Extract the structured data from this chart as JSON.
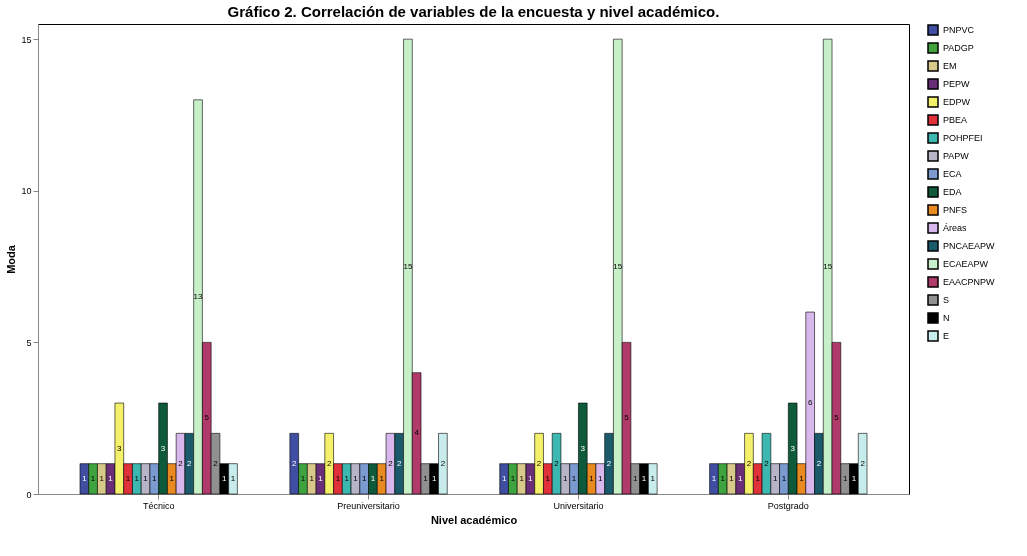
{
  "chart_data": {
    "type": "bar",
    "title": "Gráfico 2. Correlación de variables de la encuesta y nivel académico.",
    "xlabel": "Nivel académico",
    "ylabel": "Moda",
    "categories": [
      "Técnico",
      "Preuniversitario",
      "Universitario",
      "Postgrado"
    ],
    "series": [
      {
        "name": "PNPVC",
        "color": "#3f4ea0",
        "values": [
          1,
          2,
          1,
          1
        ]
      },
      {
        "name": "PADGP",
        "color": "#3fa33f",
        "values": [
          1,
          1,
          1,
          1
        ]
      },
      {
        "name": "EM",
        "color": "#d8c88a",
        "values": [
          1,
          1,
          1,
          1
        ]
      },
      {
        "name": "PEPW",
        "color": "#6a2e78",
        "values": [
          1,
          1,
          1,
          1
        ]
      },
      {
        "name": "EDPW",
        "color": "#f5f06a",
        "values": [
          3,
          2,
          2,
          2
        ]
      },
      {
        "name": "PBEA",
        "color": "#e0303a",
        "values": [
          1,
          1,
          1,
          1
        ]
      },
      {
        "name": "POHPFEI",
        "color": "#3cb8b0",
        "values": [
          1,
          1,
          2,
          2
        ]
      },
      {
        "name": "PAPW",
        "color": "#b8b4c8",
        "values": [
          1,
          1,
          1,
          1
        ]
      },
      {
        "name": "ECA",
        "color": "#7a9ad0",
        "values": [
          1,
          1,
          1,
          1
        ]
      },
      {
        "name": "EDA",
        "color": "#0f5a3a",
        "values": [
          3,
          1,
          3,
          3
        ]
      },
      {
        "name": "PNFS",
        "color": "#e88a20",
        "values": [
          1,
          1,
          1,
          1
        ]
      },
      {
        "name": "Áreas",
        "color": "#d8b8ec",
        "values": [
          2,
          2,
          1,
          6
        ]
      },
      {
        "name": "PNCAEAPW",
        "color": "#1a5a6a",
        "values": [
          2,
          2,
          2,
          2
        ]
      },
      {
        "name": "ECAEAPW",
        "color": "#c8f0c8",
        "values": [
          13,
          15,
          15,
          15
        ]
      },
      {
        "name": "EAACPNPW",
        "color": "#b03a6a",
        "values": [
          5,
          4,
          5,
          5
        ]
      },
      {
        "name": "S",
        "color": "#909090",
        "values": [
          2,
          1,
          1,
          1
        ]
      },
      {
        "name": "N",
        "color": "#000000",
        "values": [
          1,
          1,
          1,
          1
        ]
      },
      {
        "name": "E",
        "color": "#c8ecec",
        "values": [
          1,
          2,
          1,
          2
        ]
      }
    ],
    "ylim": [
      0,
      15.5
    ],
    "yticks": [
      0,
      5,
      10,
      15
    ],
    "grid": false,
    "legend": "right",
    "data_labels": true
  }
}
